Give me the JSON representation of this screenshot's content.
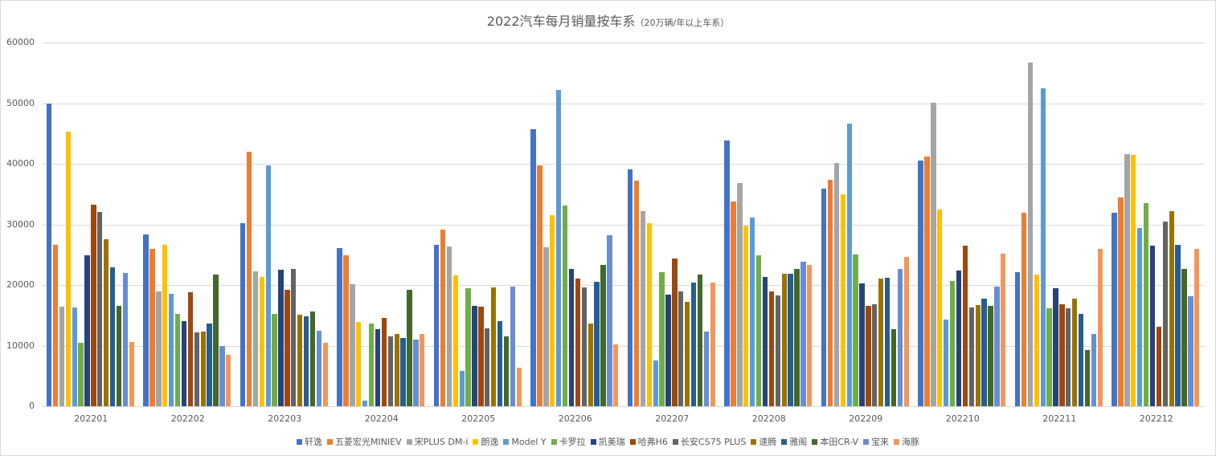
{
  "chart_data": {
    "type": "bar",
    "title": "2022汽车每月销量按车系",
    "subtitle": "（20万辆/年以上车系）",
    "xlabel": "",
    "ylabel": "",
    "ylim": [
      0,
      60000
    ],
    "yticks": [
      0,
      10000,
      20000,
      30000,
      40000,
      50000,
      60000
    ],
    "grid": true,
    "legend_position": "bottom",
    "categories": [
      "202201",
      "202202",
      "202203",
      "202204",
      "202205",
      "202206",
      "202207",
      "202208",
      "202209",
      "202210",
      "202211",
      "202212"
    ],
    "series": [
      {
        "name": "轩逸",
        "color": "#4472C4",
        "values": [
          50000,
          28400,
          30200,
          26100,
          26600,
          45700,
          39100,
          43800,
          35900,
          40500,
          22100,
          31900
        ]
      },
      {
        "name": "五菱宏光MINIEV",
        "color": "#ED7D31",
        "values": [
          26600,
          26000,
          42000,
          24900,
          29100,
          39700,
          37200,
          33800,
          37300,
          41200,
          31900,
          34400
        ]
      },
      {
        "name": "宋PLUS DM-i",
        "color": "#A5A5A5",
        "values": [
          16400,
          19000,
          22300,
          20200,
          26300,
          26200,
          32200,
          36800,
          40100,
          50100,
          56700,
          41600
        ]
      },
      {
        "name": "朗逸",
        "color": "#FFC000",
        "values": [
          45300,
          26600,
          21300,
          13900,
          21600,
          31500,
          30200,
          29800,
          35000,
          32400,
          21700,
          41500
        ]
      },
      {
        "name": "Model Y",
        "color": "#5B9BD5",
        "values": [
          16300,
          18500,
          39700,
          900,
          5800,
          52200,
          7500,
          31100,
          46600,
          14300,
          52500,
          29400
        ]
      },
      {
        "name": "卡罗拉",
        "color": "#70AD47",
        "values": [
          10400,
          15300,
          15200,
          13600,
          19500,
          33100,
          22100,
          24900,
          25100,
          20600,
          16200,
          33500
        ]
      },
      {
        "name": "凯美瑞",
        "color": "#264478",
        "values": [
          24900,
          14100,
          22500,
          12700,
          16600,
          22600,
          18400,
          21300,
          20300,
          22400,
          19500,
          26500
        ]
      },
      {
        "name": "哈弗H6",
        "color": "#9E480E",
        "values": [
          33200,
          18800,
          19200,
          14600,
          16400,
          21000,
          24400,
          18900,
          16500,
          26500,
          16800,
          13100
        ]
      },
      {
        "name": "长安CS75 PLUS",
        "color": "#636363",
        "values": [
          32000,
          12200,
          22700,
          11500,
          12900,
          19600,
          19000,
          18300,
          16800,
          16300,
          16200,
          30500
        ]
      },
      {
        "name": "速腾",
        "color": "#997300",
        "values": [
          27600,
          12300,
          15100,
          11900,
          19600,
          13600,
          17200,
          21800,
          21100,
          16700,
          17800,
          32200
        ]
      },
      {
        "name": "雅阁",
        "color": "#255E91",
        "values": [
          22900,
          13700,
          14800,
          11300,
          14000,
          20500,
          20400,
          21800,
          21200,
          17800,
          15200,
          26600
        ]
      },
      {
        "name": "本田CR-V",
        "color": "#43682B",
        "values": [
          16600,
          21700,
          15600,
          19200,
          11500,
          23300,
          21700,
          22700,
          12700,
          16500,
          9300,
          22700
        ]
      },
      {
        "name": "宝来",
        "color": "#698ED0",
        "values": [
          22000,
          9900,
          12500,
          11000,
          19700,
          28200,
          12300,
          23800,
          22600,
          19800,
          11900,
          18100
        ]
      },
      {
        "name": "海豚",
        "color": "#F1975A",
        "values": [
          10600,
          8500,
          10500,
          11900,
          6300,
          10200,
          20400,
          23300,
          24700,
          25200,
          25900,
          26000
        ]
      }
    ]
  }
}
